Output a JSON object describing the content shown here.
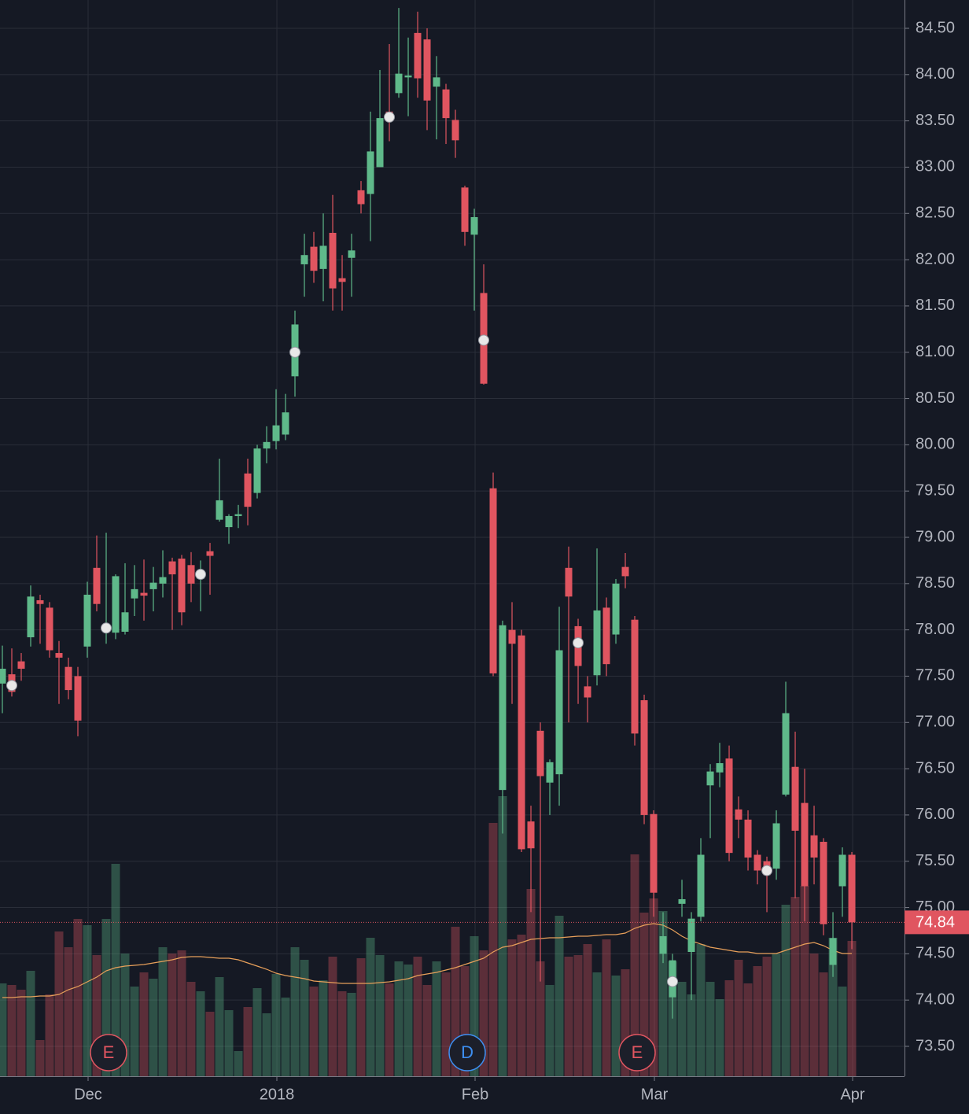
{
  "chart_data": {
    "type": "candlestick",
    "xlim": [
      -0.25,
      95.58
    ],
    "ylim": [
      73.177,
      84.806
    ],
    "vlim": [
      0,
      400
    ],
    "xticks": [
      {
        "value": 9,
        "label": "Dec"
      },
      {
        "value": 29,
        "label": "2018"
      },
      {
        "value": 50,
        "label": "Feb"
      },
      {
        "value": 69,
        "label": "Mar"
      },
      {
        "value": 90,
        "label": "Apr"
      }
    ],
    "yticks": [
      {
        "value": 73.5,
        "label": "73.50"
      },
      {
        "value": 74,
        "label": "74.00"
      },
      {
        "value": 74.5,
        "label": "74.50"
      },
      {
        "value": 75,
        "label": "75.00"
      },
      {
        "value": 75.5,
        "label": "75.50"
      },
      {
        "value": 76,
        "label": "76.00"
      },
      {
        "value": 76.5,
        "label": "76.50"
      },
      {
        "value": 77,
        "label": "77.00"
      },
      {
        "value": 77.5,
        "label": "77.50"
      },
      {
        "value": 78,
        "label": "78.00"
      },
      {
        "value": 78.5,
        "label": "78.50"
      },
      {
        "value": 79,
        "label": "79.00"
      },
      {
        "value": 79.5,
        "label": "79.50"
      },
      {
        "value": 80,
        "label": "80.00"
      },
      {
        "value": 80.5,
        "label": "80.50"
      },
      {
        "value": 81,
        "label": "81.00"
      },
      {
        "value": 81.5,
        "label": "81.50"
      },
      {
        "value": 82,
        "label": "82.00"
      },
      {
        "value": 82.5,
        "label": "82.50"
      },
      {
        "value": 83,
        "label": "83.00"
      },
      {
        "value": 83.5,
        "label": "83.50"
      },
      {
        "value": 84,
        "label": "84.00"
      },
      {
        "value": 84.5,
        "label": "84.50"
      }
    ],
    "grid": true,
    "up_color": "#5fb98a",
    "down_color": "#e05560",
    "ma_color": "#e8a05a",
    "open": [
      77.42,
      77.52,
      77.66,
      77.92,
      78.32,
      78.24,
      77.75,
      77.6,
      77.5,
      77.82,
      78.67,
      77.98,
      77.97,
      77.98,
      78.34,
      78.4,
      78.44,
      78.5,
      78.74,
      78.77,
      78.7,
      78.55,
      78.85,
      79.19,
      79.11,
      79.23,
      79.69,
      79.48,
      79.96,
      80.04,
      80.11,
      80.74,
      81.95,
      82.14,
      81.9,
      82.29,
      81.8,
      82.02,
      82.75,
      82.71,
      83.0,
      83.6,
      83.8,
      83.97,
      84.45,
      84.38,
      83.87,
      83.84,
      83.51,
      82.78,
      82.27,
      81.64,
      79.53,
      76.27,
      78.0,
      77.94,
      75.93,
      76.91,
      76.35,
      76.44,
      78.67,
      78.04,
      77.39,
      77.51,
      78.24,
      77.95,
      78.68,
      78.11,
      77.24,
      76.01,
      74.5,
      74.03,
      75.04,
      74.52,
      74.9,
      76.32,
      76.46,
      76.61,
      76.06,
      75.95,
      75.57,
      75.5,
      75.42,
      76.22,
      76.52,
      76.13,
      75.78,
      75.71,
      74.38,
      75.23,
      75.57
    ],
    "high": [
      77.83,
      77.8,
      77.75,
      78.48,
      78.38,
      78.3,
      77.88,
      77.7,
      77.6,
      78.52,
      79.02,
      79.05,
      78.6,
      78.72,
      78.7,
      78.76,
      78.68,
      78.86,
      78.78,
      78.81,
      78.84,
      78.75,
      78.94,
      79.85,
      79.25,
      79.35,
      79.85,
      80.0,
      80.2,
      80.6,
      80.55,
      81.45,
      82.28,
      82.3,
      82.5,
      82.7,
      82.05,
      82.28,
      82.85,
      83.6,
      84.05,
      84.33,
      84.72,
      84.4,
      84.68,
      84.5,
      84.2,
      83.9,
      83.62,
      82.8,
      82.55,
      81.95,
      79.7,
      78.1,
      78.3,
      78.0,
      76.1,
      77.0,
      76.6,
      78.25,
      78.9,
      78.12,
      77.5,
      78.88,
      78.35,
      78.55,
      78.83,
      78.15,
      77.3,
      76.05,
      74.95,
      74.5,
      75.3,
      74.95,
      75.75,
      76.55,
      76.78,
      76.75,
      76.2,
      76.05,
      75.62,
      75.55,
      76.05,
      77.44,
      76.9,
      76.5,
      76.1,
      75.75,
      74.95,
      75.65,
      75.6
    ],
    "low": [
      77.1,
      77.28,
      77.45,
      77.82,
      77.85,
      77.7,
      77.2,
      77.25,
      76.85,
      77.7,
      78.2,
      77.85,
      77.9,
      77.95,
      78.15,
      78.1,
      78.2,
      78.35,
      78.0,
      78.05,
      78.3,
      78.2,
      78.38,
      79.17,
      78.93,
      79.1,
      79.13,
      79.42,
      79.8,
      79.95,
      80.05,
      80.52,
      81.6,
      81.75,
      81.55,
      81.45,
      81.45,
      81.6,
      82.5,
      82.2,
      83.0,
      83.28,
      83.75,
      83.55,
      83.75,
      83.4,
      83.3,
      83.25,
      83.1,
      82.15,
      81.45,
      80.65,
      77.5,
      75.8,
      77.2,
      75.6,
      74.95,
      74.2,
      76.0,
      76.1,
      77.0,
      77.2,
      77.0,
      77.4,
      77.5,
      77.85,
      78.45,
      76.75,
      75.9,
      74.9,
      74.4,
      73.8,
      74.9,
      74.0,
      74.85,
      75.75,
      76.3,
      75.5,
      75.75,
      75.4,
      75.25,
      74.95,
      75.3,
      76.2,
      75.1,
      74.85,
      75.25,
      74.7,
      74.25,
      74.9,
      74.55
    ],
    "close": [
      77.58,
      77.33,
      77.58,
      78.36,
      78.28,
      77.78,
      77.7,
      77.35,
      77.02,
      78.38,
      78.28,
      78.06,
      78.58,
      78.19,
      78.44,
      78.37,
      78.51,
      78.57,
      78.6,
      78.19,
      78.5,
      78.62,
      78.8,
      79.4,
      79.23,
      79.25,
      79.33,
      79.96,
      80.03,
      80.21,
      80.35,
      81.3,
      82.05,
      81.88,
      82.15,
      81.69,
      81.76,
      82.1,
      82.6,
      83.17,
      83.53,
      83.5,
      84.01,
      83.99,
      83.96,
      83.72,
      83.97,
      83.53,
      83.29,
      82.3,
      82.46,
      80.66,
      77.53,
      78.05,
      77.85,
      75.63,
      75.64,
      76.42,
      76.57,
      77.78,
      78.36,
      77.61,
      77.27,
      78.21,
      77.63,
      78.5,
      78.58,
      76.88,
      76.0,
      75.16,
      74.69,
      74.43,
      75.09,
      74.88,
      75.57,
      76.47,
      76.56,
      75.59,
      75.95,
      75.54,
      75.4,
      75.35,
      75.91,
      77.1,
      75.83,
      75.23,
      75.54,
      74.82,
      74.67,
      75.57,
      74.84
    ],
    "volume": [
      118,
      116,
      110,
      134,
      46,
      104,
      184,
      164,
      200,
      192,
      154,
      200,
      270,
      156,
      114,
      132,
      124,
      164,
      156,
      160,
      120,
      108,
      82,
      126,
      84,
      32,
      88,
      112,
      80,
      130,
      100,
      164,
      148,
      114,
      122,
      152,
      108,
      106,
      150,
      176,
      154,
      118,
      146,
      142,
      152,
      116,
      146,
      132,
      190,
      140,
      178,
      160,
      322,
      356,
      174,
      180,
      238,
      146,
      116,
      204,
      152,
      154,
      168,
      132,
      174,
      128,
      136,
      282,
      208,
      226,
      210,
      146,
      120,
      104,
      168,
      120,
      98,
      122,
      148,
      118,
      140,
      152,
      156,
      218,
      228,
      242,
      156,
      132,
      176,
      114,
      172
    ],
    "volume_ma": [
      100,
      100,
      101,
      101,
      102,
      102,
      104,
      110,
      114,
      120,
      126,
      134,
      138,
      140,
      141,
      142,
      144,
      146,
      148,
      151,
      152,
      152,
      151,
      150,
      150,
      148,
      144,
      140,
      136,
      131,
      128,
      126,
      124,
      121,
      120,
      119,
      118,
      118,
      118,
      118,
      119,
      120,
      122,
      124,
      128,
      130,
      132,
      135,
      138,
      142,
      146,
      150,
      158,
      164,
      166,
      170,
      174,
      175,
      176,
      176,
      177,
      178,
      178,
      179,
      180,
      180,
      182,
      188,
      192,
      194,
      192,
      186,
      178,
      172,
      168,
      164,
      162,
      160,
      158,
      158,
      156,
      156,
      156,
      160,
      164,
      168,
      170,
      166,
      160,
      156,
      156
    ],
    "dots": {
      "index": [
        1,
        11,
        21,
        31,
        41,
        51,
        61,
        71,
        81
      ],
      "values": [
        77.4,
        78.02,
        78.6,
        81.0,
        83.54,
        81.13,
        77.86,
        74.2,
        75.4
      ]
    },
    "events": {
      "index": [
        11,
        49,
        67
      ],
      "labels": [
        "E",
        "D",
        "E"
      ],
      "colors": [
        "#e05560",
        "#3d8ef0",
        "#e05560"
      ]
    },
    "last": {
      "value": 74.84,
      "label": "74.84",
      "color": "#e05560"
    }
  }
}
